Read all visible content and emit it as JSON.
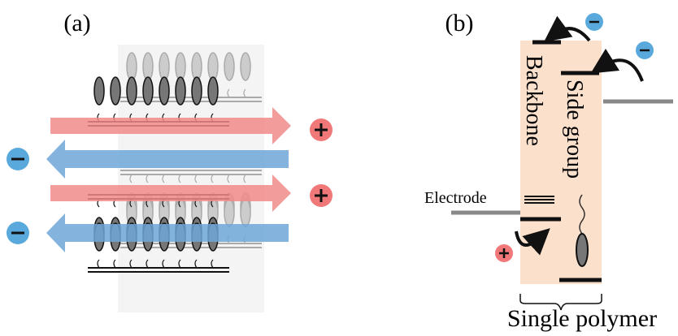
{
  "panel_a": {
    "label": "(a)"
  },
  "panel_b": {
    "label": "(b)",
    "backbone": "Backbone",
    "side_group": "Side group",
    "electrode": "Electrode",
    "caption": "Single polymer"
  }
}
